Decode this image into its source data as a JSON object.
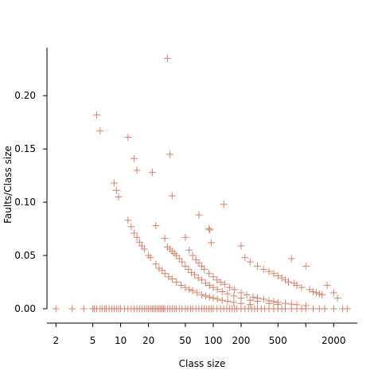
{
  "chart_data": {
    "type": "scatter",
    "xlabel": "Class size",
    "ylabel": "Faults/Class size",
    "xscale": "log",
    "xlim": [
      1.6,
      3600
    ],
    "ylim": [
      -0.012,
      0.245
    ],
    "xticks": [
      2,
      5,
      10,
      20,
      50,
      100,
      200,
      500,
      2000
    ],
    "xtick_labels": [
      "2",
      "5",
      "10",
      "20",
      "50",
      "100",
      "200",
      "500",
      "2000"
    ],
    "yticks": [
      0,
      0.05,
      0.1,
      0.15,
      0.2
    ],
    "ytick_labels": [
      "0.00",
      "0.05",
      "0.10",
      "0.15",
      "0.20"
    ],
    "marker": "plus",
    "color": "#d4846c",
    "grid": false,
    "legend": "none",
    "series": [
      {
        "x": [
          2,
          3,
          4,
          5,
          5.2,
          5.5,
          6,
          6.3,
          6.7,
          7,
          7.5,
          8,
          8.5,
          9,
          9.5,
          10,
          11,
          12,
          13,
          14,
          15,
          16,
          17,
          18,
          19,
          20,
          21,
          22,
          23,
          24,
          25,
          26,
          27,
          28,
          29,
          30,
          32,
          34,
          36,
          38,
          40,
          43,
          46,
          50,
          53,
          57,
          60,
          65,
          70,
          75,
          80,
          85,
          90,
          95,
          100,
          110,
          120,
          130,
          140,
          150,
          160,
          170,
          180,
          200,
          220,
          240,
          260,
          280,
          300,
          330,
          360,
          400,
          450,
          500,
          550,
          600,
          700,
          800,
          900,
          1000,
          1200,
          1400,
          1600,
          2000,
          2500,
          2800
        ],
        "y": [
          0,
          0,
          0,
          0,
          0,
          0,
          0,
          0,
          0,
          0,
          0,
          0,
          0,
          0,
          0,
          0,
          0,
          0,
          0,
          0,
          0,
          0,
          0,
          0,
          0,
          0,
          0,
          0,
          0,
          0,
          0,
          0,
          0,
          0,
          0,
          0,
          0,
          0,
          0,
          0,
          0,
          0,
          0,
          0,
          0,
          0,
          0,
          0,
          0,
          0,
          0,
          0,
          0,
          0,
          0,
          0,
          0,
          0,
          0,
          0,
          0,
          0,
          0,
          0,
          0,
          0,
          0,
          0,
          0,
          0,
          0,
          0,
          0,
          0,
          0,
          0,
          0,
          0,
          0,
          0,
          0,
          0,
          0,
          0,
          0,
          0
        ]
      },
      {
        "x": [
          5.5,
          6,
          8.5,
          9,
          9.5,
          12,
          13,
          14,
          15,
          16,
          17,
          18,
          20,
          21,
          24,
          26,
          28,
          30,
          33,
          36,
          40,
          45,
          50,
          55,
          60,
          67,
          75,
          83,
          91,
          100,
          111,
          125,
          143,
          167,
          200,
          250
        ],
        "y": [
          0.182,
          0.167,
          0.118,
          0.111,
          0.105,
          0.083,
          0.077,
          0.071,
          0.067,
          0.0625,
          0.059,
          0.056,
          0.05,
          0.048,
          0.042,
          0.038,
          0.036,
          0.033,
          0.03,
          0.028,
          0.025,
          0.022,
          0.02,
          0.018,
          0.017,
          0.015,
          0.013,
          0.012,
          0.011,
          0.01,
          0.009,
          0.008,
          0.007,
          0.006,
          0.005,
          0.004
        ]
      },
      {
        "x": [
          12,
          14,
          15,
          22,
          24,
          30,
          32,
          34,
          36,
          38,
          40,
          43,
          46,
          50,
          54,
          58,
          63,
          69,
          75,
          83,
          91,
          100,
          111,
          125,
          143,
          167,
          200,
          250,
          300,
          400,
          500
        ],
        "y": [
          0.161,
          0.141,
          0.13,
          0.128,
          0.078,
          0.066,
          0.058,
          0.056,
          0.054,
          0.052,
          0.05,
          0.047,
          0.044,
          0.04,
          0.037,
          0.034,
          0.032,
          0.029,
          0.027,
          0.024,
          0.022,
          0.02,
          0.018,
          0.016,
          0.014,
          0.012,
          0.01,
          0.008,
          0.007,
          0.005,
          0.004
        ]
      },
      {
        "x": [
          32,
          34,
          36,
          50,
          55,
          60,
          65,
          70,
          75,
          80,
          90,
          100,
          110,
          120,
          133,
          150,
          170,
          200,
          230,
          270,
          300,
          350,
          400,
          450,
          500,
          600,
          700,
          800,
          1000
        ],
        "y": [
          0.235,
          0.145,
          0.106,
          0.067,
          0.055,
          0.05,
          0.046,
          0.043,
          0.04,
          0.037,
          0.033,
          0.03,
          0.027,
          0.025,
          0.023,
          0.02,
          0.018,
          0.015,
          0.013,
          0.011,
          0.01,
          0.009,
          0.0075,
          0.0067,
          0.006,
          0.005,
          0.0043,
          0.0038,
          0.003
        ]
      },
      {
        "x": [
          70,
          90,
          92,
          95,
          130,
          200,
          220,
          250,
          300,
          350,
          400,
          450,
          500,
          550,
          600,
          650,
          700,
          750,
          800,
          900,
          1000,
          1100,
          1200,
          1300,
          1400,
          1500,
          1700,
          2000,
          2200
        ],
        "y": [
          0.088,
          0.075,
          0.074,
          0.062,
          0.098,
          0.059,
          0.048,
          0.044,
          0.04,
          0.037,
          0.035,
          0.033,
          0.031,
          0.029,
          0.027,
          0.025,
          0.047,
          0.024,
          0.022,
          0.02,
          0.04,
          0.018,
          0.016,
          0.015,
          0.014,
          0.013,
          0.022,
          0.015,
          0.01
        ]
      }
    ]
  }
}
